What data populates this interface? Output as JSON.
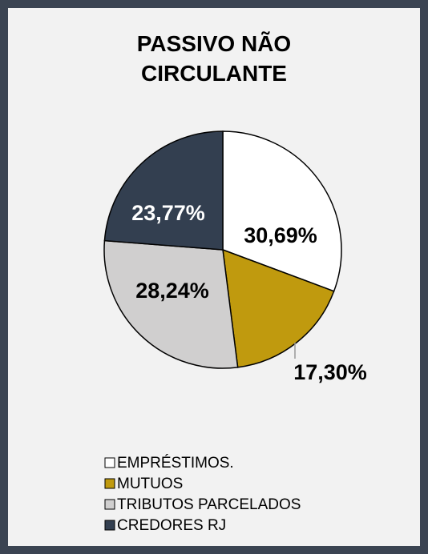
{
  "chart_data": {
    "type": "pie",
    "title": "PASSIVO NÃO CIRCULANTE",
    "categories": [
      "EMPRÉSTIMOS.",
      "MUTUOS",
      "TRIBUTOS PARCELADOS",
      "CREDORES RJ"
    ],
    "values": [
      30.69,
      17.3,
      28.24,
      23.77
    ],
    "value_labels": [
      "30,69%",
      "17,30%",
      "28,24%",
      "23,77%"
    ],
    "colors": [
      "#ffffff",
      "#c09a0e",
      "#d0cfcf",
      "#333f50"
    ],
    "legend": "bottom"
  }
}
